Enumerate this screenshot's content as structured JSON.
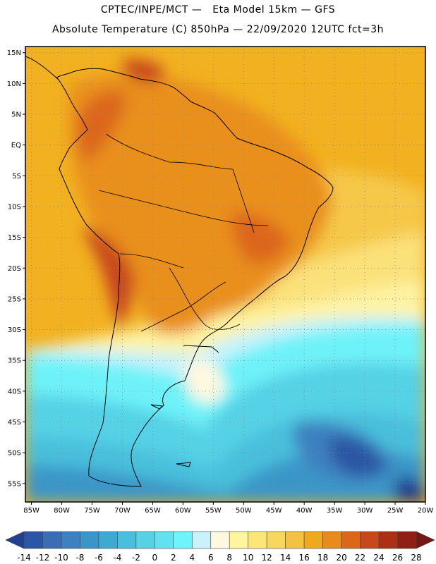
{
  "header": {
    "line1": "CPTEC/INPE/MCT —   Eta Model 15km — GFS",
    "line2": "Absolute Temperature (C) 850hPa — 22/09/2020 12UTC fct=3h"
  },
  "map": {
    "lat_labels": [
      "15N",
      "10N",
      "5N",
      "EQ",
      "5S",
      "10S",
      "15S",
      "20S",
      "25S",
      "30S",
      "35S",
      "40S",
      "45S",
      "50S",
      "55S"
    ],
    "lon_labels": [
      "85W",
      "80W",
      "75W",
      "70W",
      "65W",
      "60W",
      "55W",
      "50W",
      "45W",
      "40W",
      "35W",
      "30W",
      "25W",
      "20W"
    ],
    "lat_range": [
      -58,
      16
    ],
    "lon_range": [
      -86,
      -20
    ],
    "field": "Absolute Temperature (C) 850hPa",
    "grid": true
  },
  "colorbar": {
    "labels": [
      "-14",
      "-12",
      "-10",
      "-8",
      "-6",
      "-4",
      "-2",
      "0",
      "2",
      "4",
      "6",
      "8",
      "10",
      "12",
      "14",
      "16",
      "18",
      "20",
      "22",
      "24",
      "26",
      "28"
    ],
    "colors": [
      "#23408f",
      "#2b56a3",
      "#3a6db3",
      "#3e80c0",
      "#3b96c8",
      "#3eaad2",
      "#48bfdc",
      "#55d2e6",
      "#61e2f0",
      "#6ff4fb",
      "#c8f3fb",
      "#fff8e0",
      "#fff59e",
      "#fbe677",
      "#f8d85c",
      "#f2c242",
      "#eeaa1b",
      "#e68b1c",
      "#dc661a",
      "#c8471b",
      "#ad2f16",
      "#8f2014",
      "#731812"
    ]
  }
}
